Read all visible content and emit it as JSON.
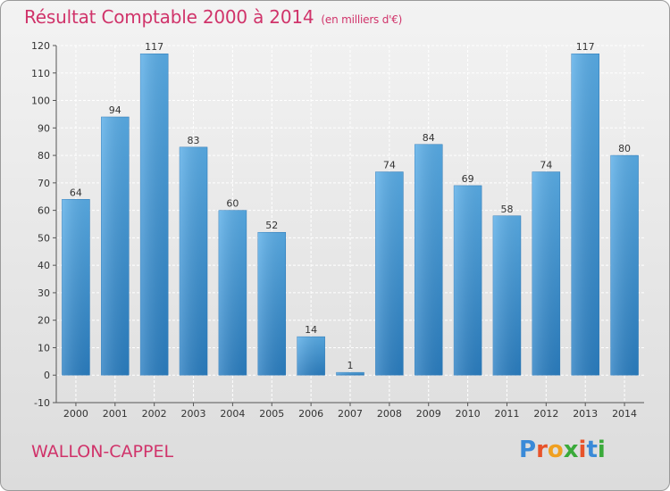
{
  "header": {
    "title": "Résultat Comptable 2000 à 2014",
    "subtitle": "(en milliers d'€)"
  },
  "footer": {
    "city": "WALLON-CAPPEL",
    "logo_text": "Proxiti"
  },
  "colors": {
    "title": "#d0336a",
    "bar_top": "#5aaee8",
    "bar_bottom": "#2b7fc2",
    "grid": "#ffffff"
  },
  "chart_data": {
    "type": "bar",
    "title": "Résultat Comptable 2000 à 2014",
    "subtitle": "(en milliers d'€)",
    "xlabel": "",
    "ylabel": "",
    "categories": [
      "2000",
      "2001",
      "2002",
      "2003",
      "2004",
      "2005",
      "2006",
      "2007",
      "2008",
      "2009",
      "2010",
      "2011",
      "2012",
      "2013",
      "2014"
    ],
    "values": [
      64,
      94,
      117,
      83,
      60,
      52,
      14,
      1,
      74,
      84,
      69,
      58,
      74,
      117,
      80
    ],
    "ylim": [
      -10,
      120
    ],
    "yticks": [
      -10,
      0,
      10,
      20,
      30,
      40,
      50,
      60,
      70,
      80,
      90,
      100,
      110,
      120
    ],
    "grid": true,
    "legend": "none"
  }
}
